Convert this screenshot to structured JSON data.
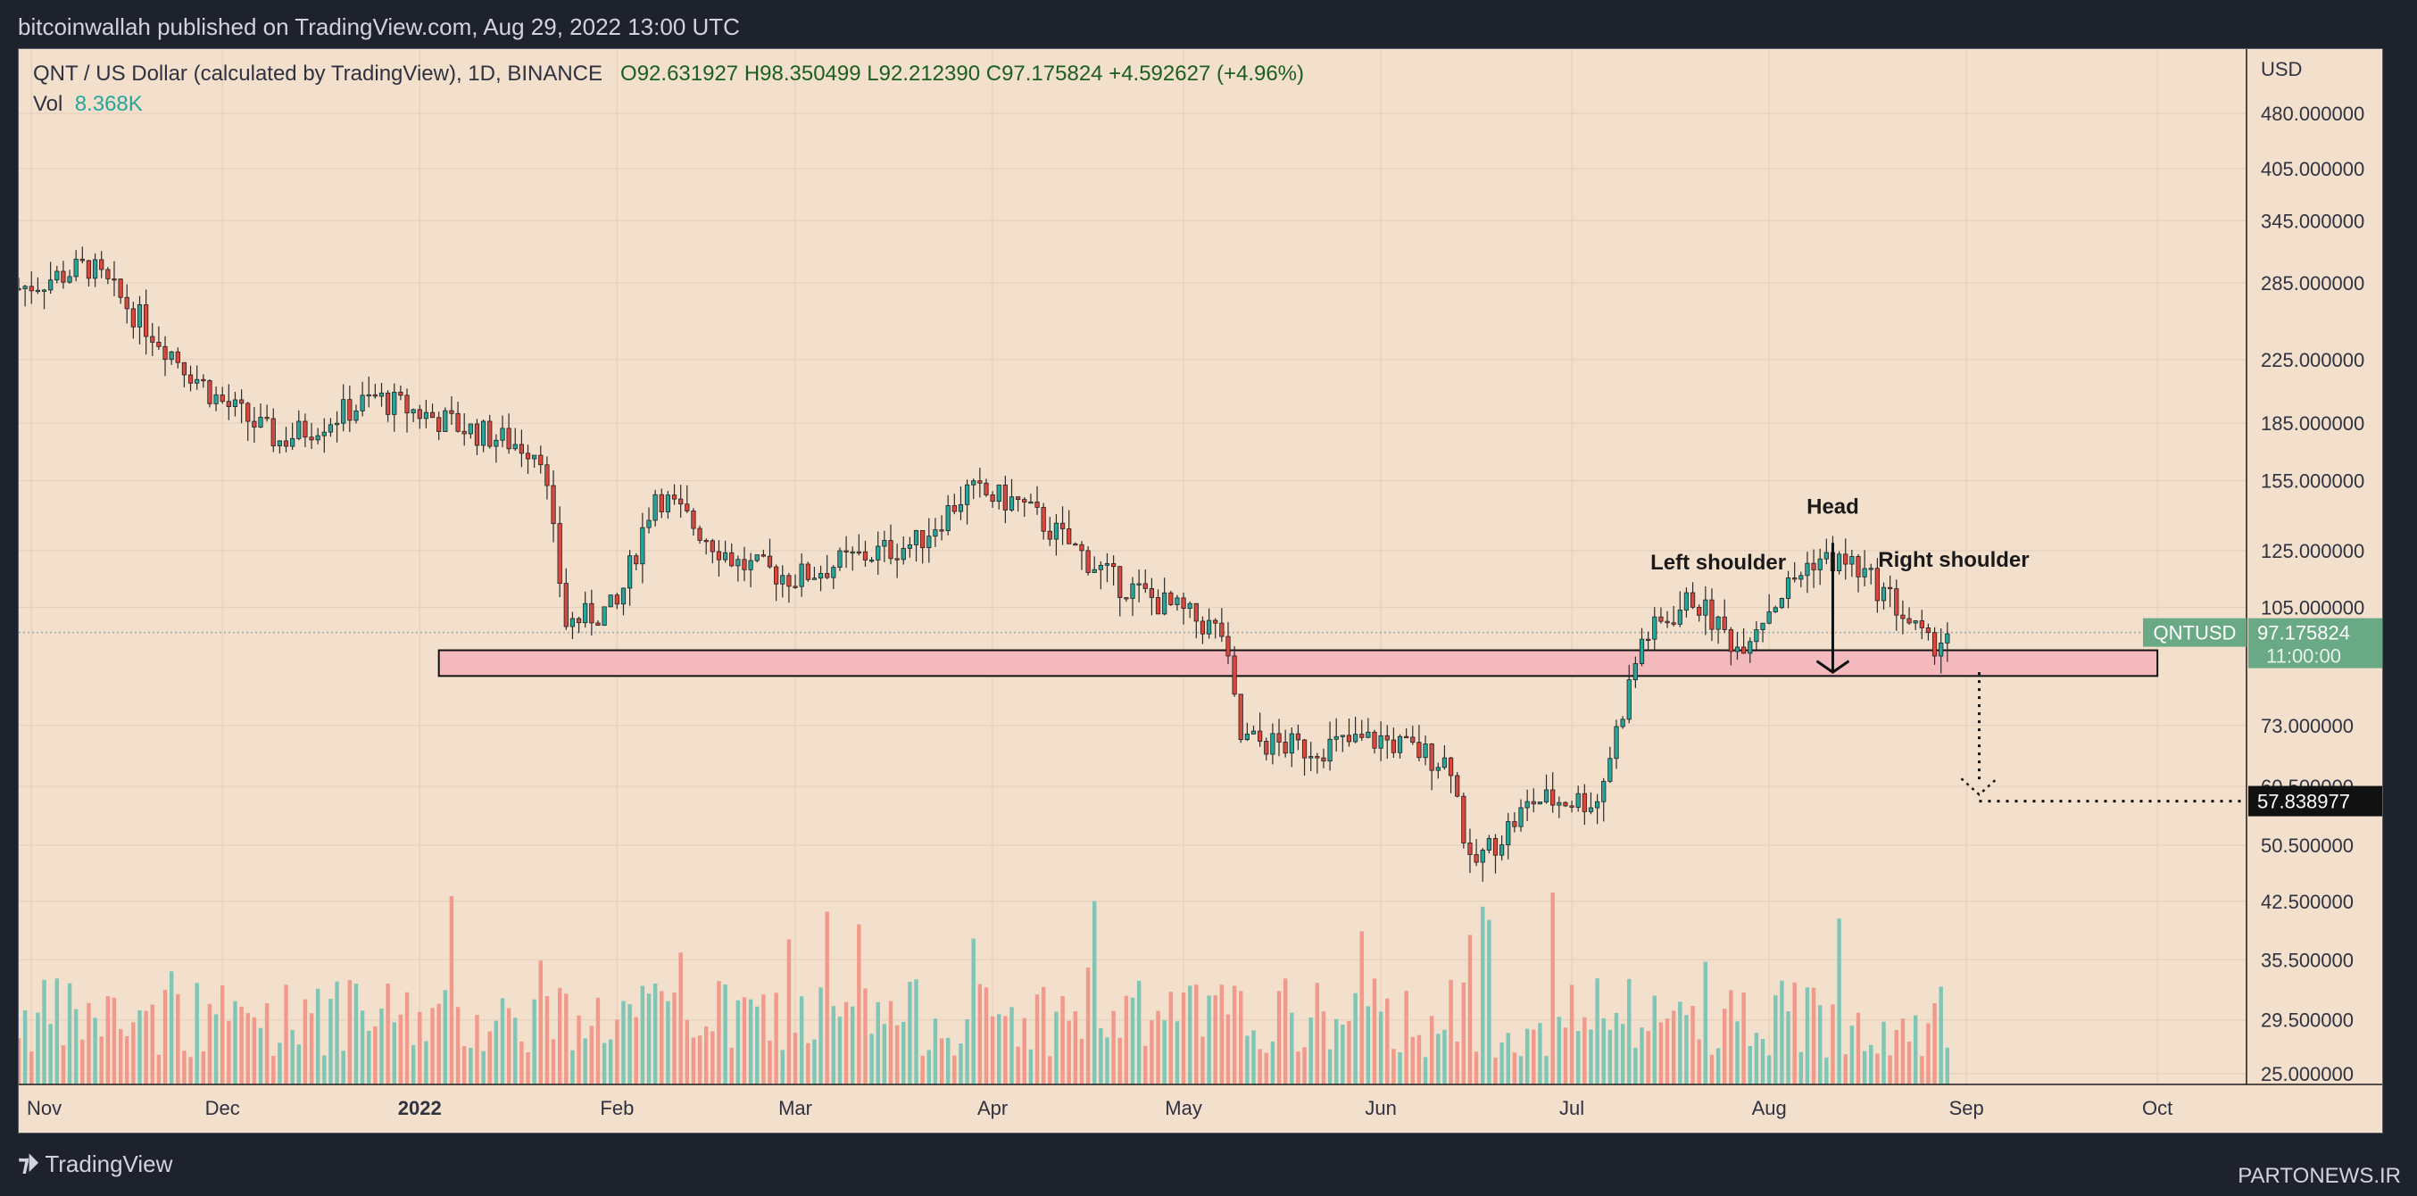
{
  "header": {
    "publisher_line": "bitcoinwallah published on TradingView.com, Aug 29, 2022 13:00 UTC"
  },
  "legend": {
    "symbol_line": "QNT / US Dollar (calculated by TradingView), 1D, BINANCE",
    "ohlc": "O92.631927  H98.350499  L92.212390  C97.175824  +4.592627 (+4.96%)",
    "vol_label": "Vol",
    "vol_value": "8.368K"
  },
  "footer": {
    "brand": "TradingView",
    "watermark": "PARTONEWS.IR"
  },
  "colors": {
    "background": "#f2dfcc",
    "up": "#26a69a",
    "down": "#ef5350",
    "up_volume": "#7fc6b6",
    "down_volume": "#f19a8c",
    "support_zone": "#f4b9bd",
    "price_label": "#6aa985"
  },
  "chart_data": {
    "type": "candlestick",
    "scale": "log",
    "currency_label": "USD",
    "y_ticks": [
      "480.000000",
      "405.000000",
      "345.000000",
      "285.000000",
      "225.000000",
      "185.000000",
      "155.000000",
      "125.000000",
      "105.000000",
      "73.000000",
      "60.500000",
      "50.500000",
      "42.500000",
      "35.500000",
      "29.500000",
      "25.000000"
    ],
    "x_ticks": [
      "Nov",
      "Dec",
      "2022",
      "Feb",
      "Mar",
      "Apr",
      "May",
      "Jun",
      "Jul",
      "Aug",
      "Sep",
      "Oct"
    ],
    "x_range": [
      "2021-10-30",
      "2022-10-15"
    ],
    "price_series_key_points": [
      {
        "date": "2021-10-30",
        "price": 280
      },
      {
        "date": "2021-11-10",
        "price": 300
      },
      {
        "date": "2021-11-20",
        "price": 245
      },
      {
        "date": "2021-11-30",
        "price": 200
      },
      {
        "date": "2021-12-10",
        "price": 175
      },
      {
        "date": "2021-12-25",
        "price": 200
      },
      {
        "date": "2022-01-10",
        "price": 180
      },
      {
        "date": "2022-01-20",
        "price": 170
      },
      {
        "date": "2022-01-24",
        "price": 100
      },
      {
        "date": "2022-02-01",
        "price": 105
      },
      {
        "date": "2022-02-07",
        "price": 150
      },
      {
        "date": "2022-02-20",
        "price": 120
      },
      {
        "date": "2022-03-01",
        "price": 115
      },
      {
        "date": "2022-03-10",
        "price": 122
      },
      {
        "date": "2022-03-20",
        "price": 128
      },
      {
        "date": "2022-03-28",
        "price": 150
      },
      {
        "date": "2022-04-05",
        "price": 145
      },
      {
        "date": "2022-04-20",
        "price": 114
      },
      {
        "date": "2022-05-01",
        "price": 103
      },
      {
        "date": "2022-05-07",
        "price": 97
      },
      {
        "date": "2022-05-10",
        "price": 70
      },
      {
        "date": "2022-05-20",
        "price": 68
      },
      {
        "date": "2022-06-01",
        "price": 70
      },
      {
        "date": "2022-06-12",
        "price": 65
      },
      {
        "date": "2022-06-15",
        "price": 47
      },
      {
        "date": "2022-06-25",
        "price": 58
      },
      {
        "date": "2022-07-05",
        "price": 58
      },
      {
        "date": "2022-07-12",
        "price": 95
      },
      {
        "date": "2022-07-20",
        "price": 108
      },
      {
        "date": "2022-07-27",
        "price": 93
      },
      {
        "date": "2022-08-01",
        "price": 105
      },
      {
        "date": "2022-08-08",
        "price": 122
      },
      {
        "date": "2022-08-14",
        "price": 120
      },
      {
        "date": "2022-08-20",
        "price": 108
      },
      {
        "date": "2022-08-26",
        "price": 93
      },
      {
        "date": "2022-08-29",
        "price": 97.175824
      }
    ],
    "last_price": {
      "symbol": "QNTUSD",
      "value": "97.175824",
      "countdown": "11:00:00"
    },
    "target_price": {
      "value": "57.838977"
    },
    "support_zone": {
      "low": 85,
      "high": 92,
      "from": "2022-01-04",
      "to": "2022-10-01"
    },
    "annotations": [
      {
        "text": "Left shoulder",
        "date": "2022-07-24",
        "price": 118
      },
      {
        "text": "Head",
        "date": "2022-08-11",
        "price": 140
      },
      {
        "text": "Right shoulder",
        "date": "2022-08-30",
        "price": 119
      }
    ],
    "pattern": "head-and-shoulders"
  }
}
